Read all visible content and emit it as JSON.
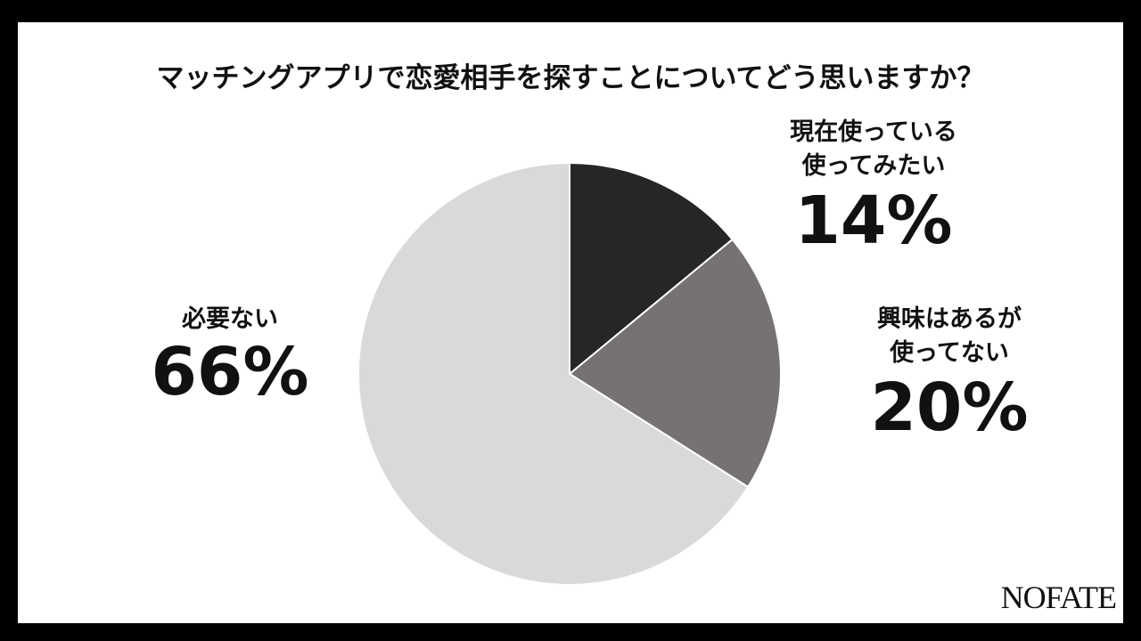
{
  "chart_data": {
    "type": "pie",
    "title": "マッチングアプリで恋愛相手を探すことについてどう思いますか？",
    "categories": [
      "現在使っている\n使ってみたい",
      "興味はあるが\n使ってない",
      "必要ない"
    ],
    "values": [
      14,
      20,
      66
    ],
    "value_labels": [
      "14%",
      "20%",
      "66%"
    ],
    "colors": [
      "#262626",
      "#767272",
      "#d9d9d9"
    ],
    "start_angle": 0,
    "direction": "clockwise"
  },
  "logo": "NOFATE"
}
